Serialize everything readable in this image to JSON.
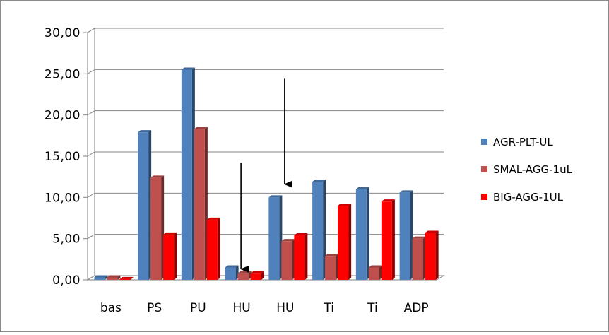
{
  "chart_data": {
    "type": "bar",
    "title": "",
    "xlabel": "",
    "ylabel": "",
    "ylim": [
      0,
      30
    ],
    "yticks": [
      "0,00",
      "5,00",
      "10,00",
      "15,00",
      "20,00",
      "25,00",
      "30,00"
    ],
    "grid": true,
    "legend_position": "right",
    "categories": [
      "bas",
      "PS",
      "PU",
      "HU",
      "HU",
      "Ti",
      "Ti",
      "ADP"
    ],
    "series": [
      {
        "name": "AGR-PLT-UL",
        "color": "#4f81bd",
        "values": [
          0.3,
          17.9,
          25.5,
          1.5,
          10.0,
          11.9,
          11.0,
          10.6
        ]
      },
      {
        "name": "SMAL-AGG-1uL",
        "color": "#c0504d",
        "values": [
          0.3,
          12.4,
          18.3,
          0.8,
          4.7,
          2.9,
          1.5,
          5.0
        ]
      },
      {
        "name": "BIG-AGG-1UL",
        "color": "#ff0000",
        "values": [
          0.1,
          5.5,
          7.3,
          0.8,
          5.4,
          9.0,
          9.5,
          5.7
        ]
      }
    ],
    "annotations": [
      {
        "type": "arrow",
        "category_index": 3,
        "from_value": 14.2,
        "to_value": 1.3
      },
      {
        "type": "arrow",
        "category_index": 4,
        "from_value": 24.4,
        "to_value": 11.6
      }
    ]
  }
}
